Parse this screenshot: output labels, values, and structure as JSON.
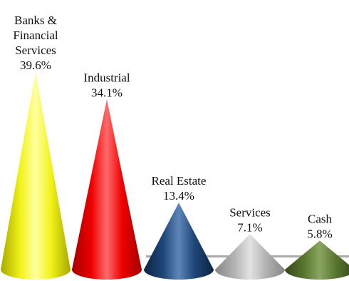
{
  "chart_data": {
    "type": "bar",
    "style": "3d-cone",
    "categories": [
      [
        "Banks &",
        "Financial",
        "Services"
      ],
      [
        "Industrial"
      ],
      [
        "Real Estate"
      ],
      [
        "Services"
      ],
      [
        "Cash"
      ]
    ],
    "values": [
      39.6,
      34.1,
      13.4,
      7.1,
      5.8
    ],
    "value_labels": [
      "39.6%",
      "34.1%",
      "13.4%",
      "7.1%",
      "5.8%"
    ],
    "colors": [
      {
        "light": "#ffffa0",
        "base": "#f2f21a",
        "dark": "#a8a800"
      },
      {
        "light": "#ff6a6a",
        "base": "#ee0000",
        "dark": "#a40000"
      },
      {
        "light": "#5f86b8",
        "base": "#1f4778",
        "dark": "#0d2345"
      },
      {
        "light": "#e2e2e2",
        "base": "#b4b4b4",
        "dark": "#868686"
      },
      {
        "light": "#8aa660",
        "base": "#5a7730",
        "dark": "#33471a"
      }
    ],
    "floor_color": "#aaaaaa",
    "ylim": [
      0,
      40
    ],
    "grid": false,
    "legend": "none"
  }
}
